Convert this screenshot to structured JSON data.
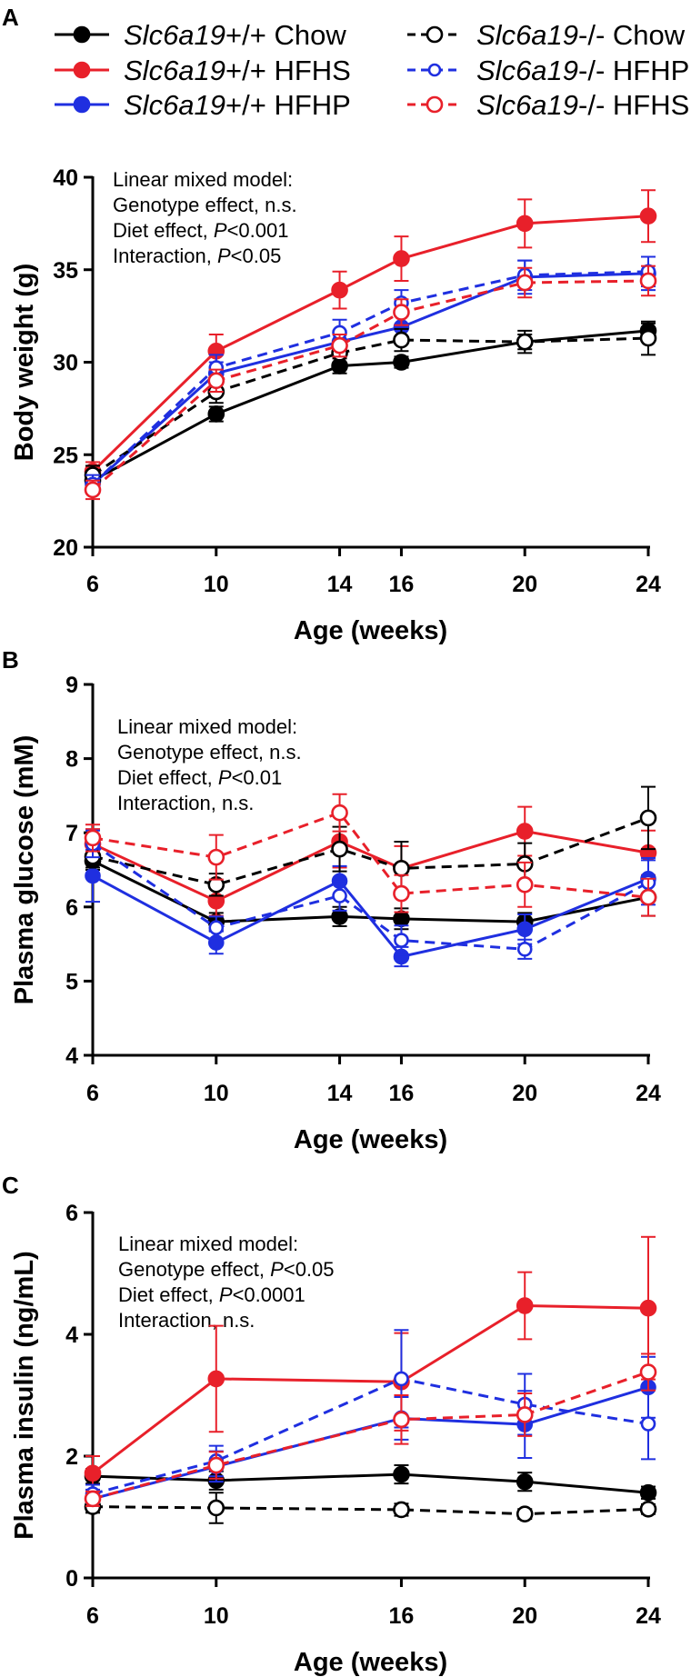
{
  "legend": {
    "items": [
      {
        "genotype": "Slc6a19",
        "suffix": "+/+",
        "diet": "Chow",
        "color": "#000000",
        "filled": true,
        "dashed": false
      },
      {
        "genotype": "Slc6a19",
        "suffix": "+/+",
        "diet": "HFHS",
        "color": "#e8202a",
        "filled": true,
        "dashed": false
      },
      {
        "genotype": "Slc6a19",
        "suffix": "+/+",
        "diet": "HFHP",
        "color": "#1f2fe0",
        "filled": true,
        "dashed": false
      },
      {
        "genotype": "Slc6a19",
        "suffix": "-/-",
        "diet": "Chow",
        "color": "#000000",
        "filled": false,
        "dashed": true
      },
      {
        "genotype": "Slc6a19",
        "suffix": "-/-",
        "diet": "HFHP",
        "color": "#1f2fe0",
        "filled": false,
        "dashed": true
      },
      {
        "genotype": "Slc6a19",
        "suffix": "-/-",
        "diet": "HFHS",
        "color": "#e8202a",
        "filled": false,
        "dashed": true
      }
    ]
  },
  "chart_data": [
    {
      "panel": "A",
      "type": "line",
      "ylabel": "Body weight (g)",
      "xlabel": "Age (weeks)",
      "xlim": [
        6,
        24
      ],
      "ylim": [
        20,
        40
      ],
      "xticks": [
        6,
        10,
        14,
        16,
        20,
        24
      ],
      "yticks": [
        20,
        25,
        30,
        35,
        40
      ],
      "annotation": [
        {
          "text": "Linear mixed model:",
          "italic": "",
          "rest": ""
        },
        {
          "text": "Genotype effect, n.s.",
          "italic": "",
          "rest": ""
        },
        {
          "text": "Diet effect, ",
          "italic": "P",
          "rest": "<0.001"
        },
        {
          "text": "Interaction, ",
          "italic": "P",
          "rest": "<0.05"
        }
      ],
      "series": [
        {
          "name": "Slc6a19+/+ Chow",
          "x": [
            6,
            10,
            14,
            16,
            20,
            24
          ],
          "values": [
            23.6,
            27.2,
            29.8,
            30.0,
            31.1,
            31.7
          ],
          "err": [
            0.4,
            0.4,
            0.4,
            0.3,
            0.4,
            0.4
          ]
        },
        {
          "name": "Slc6a19+/+ HFHS",
          "x": [
            6,
            10,
            14,
            16,
            20,
            24
          ],
          "values": [
            24.1,
            30.6,
            33.9,
            35.6,
            37.5,
            37.9
          ],
          "err": [
            0.5,
            0.9,
            1.0,
            1.2,
            1.3,
            1.4
          ]
        },
        {
          "name": "Slc6a19+/+ HFHP",
          "x": [
            6,
            10,
            14,
            16,
            20,
            24
          ],
          "values": [
            23.4,
            29.4,
            31.1,
            31.9,
            34.6,
            34.8
          ],
          "err": [
            0.4,
            0.6,
            0.6,
            0.7,
            0.9,
            0.9
          ]
        },
        {
          "name": "Slc6a19-/- Chow",
          "x": [
            6,
            10,
            14,
            16,
            20,
            24
          ],
          "values": [
            23.9,
            28.4,
            30.5,
            31.2,
            31.1,
            31.3
          ],
          "err": [
            0.5,
            0.6,
            0.6,
            0.6,
            0.6,
            0.9
          ]
        },
        {
          "name": "Slc6a19-/- HFHP",
          "x": [
            6,
            10,
            14,
            16,
            20,
            24
          ],
          "values": [
            23.4,
            29.7,
            31.6,
            33.2,
            34.7,
            34.9
          ],
          "err": [
            0.5,
            0.7,
            0.7,
            0.7,
            0.8,
            0.8
          ]
        },
        {
          "name": "Slc6a19-/- HFHS",
          "x": [
            6,
            10,
            14,
            16,
            20,
            24
          ],
          "values": [
            23.1,
            29.0,
            30.9,
            32.7,
            34.3,
            34.4
          ],
          "err": [
            0.5,
            0.6,
            0.6,
            0.7,
            0.8,
            0.8
          ]
        }
      ]
    },
    {
      "panel": "B",
      "type": "line",
      "ylabel": "Plasma glucose (mM)",
      "xlabel": "Age (weeks)",
      "xlim": [
        6,
        24
      ],
      "ylim": [
        4,
        9
      ],
      "xticks": [
        6,
        10,
        14,
        16,
        20,
        24
      ],
      "yticks": [
        4,
        5,
        6,
        7,
        8,
        9
      ],
      "annotation": [
        {
          "text": "Linear mixed model:",
          "italic": "",
          "rest": ""
        },
        {
          "text": "Genotype effect, n.s.",
          "italic": "",
          "rest": ""
        },
        {
          "text": "Diet effect, ",
          "italic": "P",
          "rest": "<0.01"
        },
        {
          "text": "Interaction, n.s.",
          "italic": "",
          "rest": ""
        }
      ],
      "series": [
        {
          "name": "Slc6a19+/+ Chow",
          "x": [
            6,
            10,
            14,
            16,
            20,
            24
          ],
          "values": [
            6.62,
            5.8,
            5.87,
            5.84,
            5.8,
            6.13
          ],
          "err": [
            0.12,
            0.12,
            0.13,
            0.14,
            0.12,
            0.25
          ]
        },
        {
          "name": "Slc6a19+/+ HFHS",
          "x": [
            6,
            10,
            14,
            16,
            20,
            24
          ],
          "values": [
            6.85,
            6.08,
            6.88,
            6.52,
            7.02,
            6.73
          ],
          "err": [
            0.2,
            0.2,
            0.35,
            0.3,
            0.33,
            0.3
          ]
        },
        {
          "name": "Slc6a19+/+ HFHP",
          "x": [
            6,
            10,
            14,
            16,
            20,
            24
          ],
          "values": [
            6.42,
            5.52,
            6.35,
            5.33,
            5.7,
            6.38
          ],
          "err": [
            0.35,
            0.15,
            0.2,
            0.13,
            0.2,
            0.28
          ]
        },
        {
          "name": "Slc6a19-/- Chow",
          "x": [
            6,
            10,
            14,
            16,
            20,
            24
          ],
          "values": [
            6.68,
            6.3,
            6.78,
            6.52,
            6.58,
            7.2
          ],
          "err": [
            0.15,
            0.15,
            0.3,
            0.36,
            0.28,
            0.42
          ]
        },
        {
          "name": "Slc6a19-/- HFHP",
          "x": [
            6,
            10,
            14,
            16,
            20,
            24
          ],
          "values": [
            6.85,
            5.72,
            6.15,
            5.55,
            5.43,
            6.33
          ],
          "err": [
            0.18,
            0.15,
            0.2,
            0.2,
            0.13,
            0.3
          ]
        },
        {
          "name": "Slc6a19-/- HFHS",
          "x": [
            6,
            10,
            14,
            16,
            20,
            24
          ],
          "values": [
            6.93,
            6.67,
            7.27,
            6.18,
            6.3,
            6.13
          ],
          "err": [
            0.18,
            0.3,
            0.25,
            0.25,
            0.3,
            0.25
          ]
        }
      ]
    },
    {
      "panel": "C",
      "type": "line",
      "ylabel": "Plasma insulin (ng/mL)",
      "xlabel": "Age (weeks)",
      "xlim": [
        6,
        24
      ],
      "ylim": [
        0,
        6
      ],
      "xticks": [
        6,
        10,
        16,
        20,
        24
      ],
      "yticks": [
        0,
        2,
        4,
        6
      ],
      "annotation": [
        {
          "text": "Linear mixed model:",
          "italic": "",
          "rest": ""
        },
        {
          "text": "Genotype effect, ",
          "italic": "P",
          "rest": "<0.05"
        },
        {
          "text": "Diet effect, ",
          "italic": "P",
          "rest": "<0.0001"
        },
        {
          "text": "Interaction, n.s.",
          "italic": "",
          "rest": ""
        }
      ],
      "series": [
        {
          "name": "Slc6a19+/+ Chow",
          "x": [
            6,
            10,
            16,
            20,
            24
          ],
          "values": [
            1.67,
            1.6,
            1.7,
            1.58,
            1.4
          ],
          "err": [
            0.12,
            0.15,
            0.15,
            0.15,
            0.1
          ]
        },
        {
          "name": "Slc6a19+/+ HFHS",
          "x": [
            6,
            10,
            16,
            20,
            24
          ],
          "values": [
            1.72,
            3.27,
            3.22,
            4.47,
            4.43
          ],
          "err": [
            0.28,
            0.87,
            0.8,
            0.55,
            1.17
          ]
        },
        {
          "name": "Slc6a19+/+ HFHP",
          "x": [
            6,
            10,
            16,
            20,
            24
          ],
          "values": [
            1.3,
            1.83,
            2.62,
            2.52,
            3.13
          ],
          "err": [
            0.15,
            0.25,
            0.35,
            0.55,
            0.5
          ]
        },
        {
          "name": "Slc6a19-/- Chow",
          "x": [
            6,
            10,
            16,
            20,
            24
          ],
          "values": [
            1.17,
            1.15,
            1.12,
            1.05,
            1.13
          ],
          "err": [
            0.1,
            0.25,
            0.1,
            0.08,
            0.08
          ]
        },
        {
          "name": "Slc6a19-/- HFHP",
          "x": [
            6,
            10,
            16,
            20,
            24
          ],
          "values": [
            1.38,
            1.92,
            3.27,
            2.85,
            2.53
          ],
          "err": [
            0.15,
            0.25,
            0.8,
            0.5,
            0.58
          ]
        },
        {
          "name": "Slc6a19-/- HFHS",
          "x": [
            6,
            10,
            16,
            20,
            24
          ],
          "values": [
            1.3,
            1.85,
            2.6,
            2.68,
            3.38
          ],
          "err": [
            0.12,
            0.22,
            0.4,
            0.35,
            0.3
          ]
        }
      ]
    }
  ]
}
